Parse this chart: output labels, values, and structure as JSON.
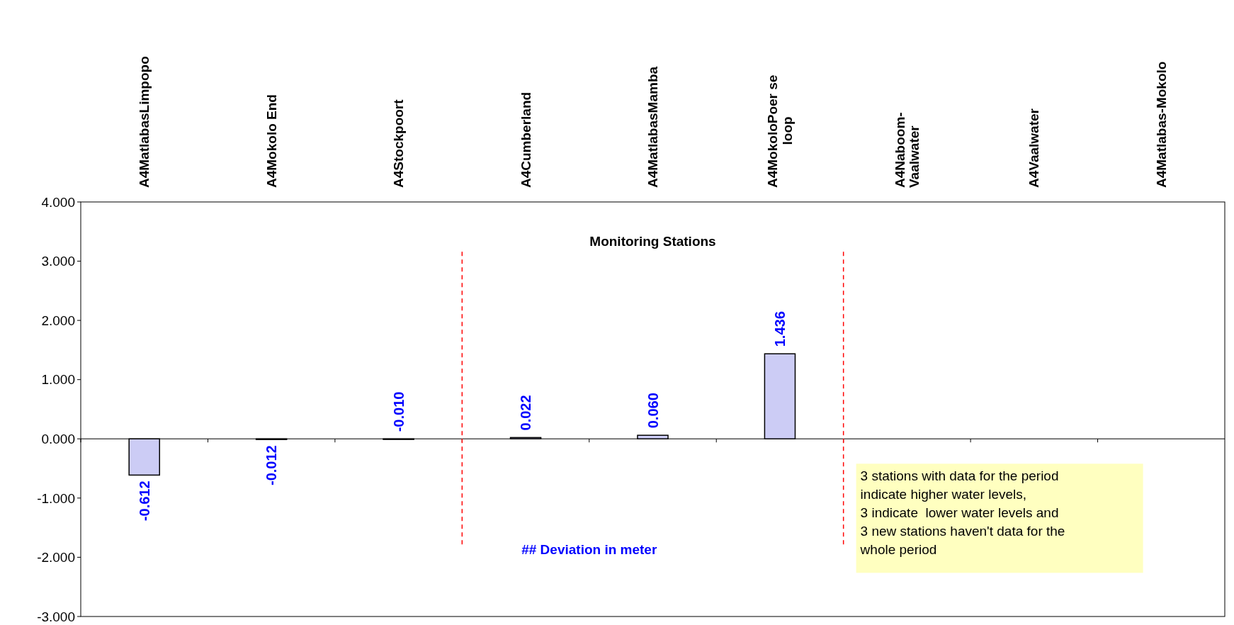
{
  "chart_data": {
    "type": "bar",
    "xlabel": "Monitoring Stations",
    "categories": [
      "A4MatlabasLimpopo",
      "A4Mokolo End",
      "A4Stockpoort",
      "A4Cumberland",
      "A4MatlabasMamba",
      "A4MokoloPoer se loop",
      "A4Naboom-Vaalwater",
      "A4Vaalwater",
      "A4Matlabas-Mokolo"
    ],
    "values": [
      -0.612,
      -0.012,
      -0.01,
      0.022,
      0.06,
      1.436,
      null,
      null,
      null
    ],
    "value_labels": [
      "-0.612",
      "-0.012",
      "-0.010",
      "0.022",
      "0.060",
      "1.436",
      null,
      null,
      null
    ],
    "color": "#ccccf5",
    "ylim": [
      -3,
      4
    ],
    "yticks": [
      {
        "value": -3,
        "label": "-3.000"
      },
      {
        "value": -2,
        "label": "-2.000"
      },
      {
        "value": -1,
        "label": "-1.000"
      },
      {
        "value": 0,
        "label": "0.000"
      },
      {
        "value": 1,
        "label": "1.000"
      },
      {
        "value": 2,
        "label": "2.000"
      },
      {
        "value": 3,
        "label": "3.000"
      },
      {
        "value": 4,
        "label": "4.000"
      }
    ],
    "annotations": [
      "## Deviation in meter",
      "3 stations with data for the period\nindicate higher water levels,\n3 indicate  lower water levels and\n3 new stations haven't data for the\nwhole period"
    ],
    "grid": false
  }
}
